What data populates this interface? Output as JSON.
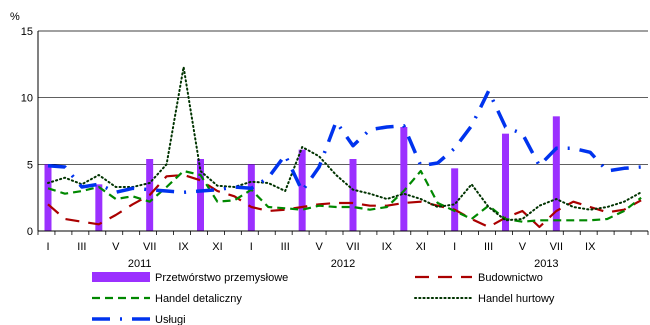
{
  "chart_data": {
    "type": "line",
    "unit_label": "%",
    "ylim": [
      0,
      15
    ],
    "y_ticks": [
      "0",
      "5",
      "10",
      "15"
    ],
    "x_tick_labels": [
      "I",
      "III",
      "V",
      "VII",
      "IX",
      "XI",
      "I",
      "III",
      "V",
      "VII",
      "IX",
      "XI",
      "I",
      "III",
      "V",
      "VII",
      "IX"
    ],
    "year_labels": [
      {
        "label": "2011",
        "month_index": 6
      },
      {
        "label": "2012",
        "month_index": 18
      },
      {
        "label": "2013",
        "month_index": 30
      }
    ],
    "grid": true,
    "legend_position": "bottom",
    "months": 36,
    "bars": {
      "name": "Przetwórstwo przemysłowe",
      "color": "#9b30ff",
      "points": [
        {
          "month": 0,
          "value": 5.0
        },
        {
          "month": 3,
          "value": 3.5
        },
        {
          "month": 6,
          "value": 5.4
        },
        {
          "month": 9,
          "value": 5.4
        },
        {
          "month": 12,
          "value": 5.0
        },
        {
          "month": 15,
          "value": 6.1
        },
        {
          "month": 18,
          "value": 5.4
        },
        {
          "month": 21,
          "value": 7.8
        },
        {
          "month": 24,
          "value": 4.7
        },
        {
          "month": 27,
          "value": 7.3
        },
        {
          "month": 30,
          "value": 8.6
        }
      ]
    },
    "series": [
      {
        "name": "Budownictwo",
        "color": "#aa0000",
        "style": "longdash",
        "values": [
          2.0,
          0.9,
          0.7,
          0.5,
          1.2,
          2.0,
          2.7,
          4.1,
          4.2,
          3.8,
          3.0,
          2.6,
          1.8,
          1.5,
          1.6,
          1.8,
          2.0,
          2.1,
          2.1,
          1.9,
          1.9,
          2.1,
          2.2,
          1.9,
          1.6,
          0.9,
          0.3,
          1.0,
          1.5,
          0.3,
          1.5,
          2.2,
          1.8,
          1.4,
          1.6,
          2.3
        ]
      },
      {
        "name": "Handel detaliczny",
        "color": "#008800",
        "style": "dash",
        "values": [
          3.2,
          2.8,
          3.0,
          3.3,
          2.4,
          2.6,
          2.2,
          3.3,
          4.5,
          4.2,
          2.2,
          2.3,
          3.1,
          1.8,
          1.7,
          1.6,
          1.9,
          1.8,
          1.8,
          1.6,
          1.8,
          3.0,
          4.5,
          2.1,
          1.5,
          0.9,
          1.9,
          0.9,
          0.7,
          0.8,
          0.8,
          0.8,
          0.8,
          0.9,
          1.5,
          2.5
        ]
      },
      {
        "name": "Handel hurtowy",
        "color": "#003300",
        "style": "dot",
        "values": [
          3.6,
          4.0,
          3.5,
          4.2,
          3.3,
          3.3,
          3.6,
          5.0,
          12.3,
          4.5,
          3.4,
          3.3,
          3.7,
          3.6,
          3.0,
          6.3,
          5.6,
          4.2,
          3.1,
          2.8,
          2.4,
          2.8,
          2.4,
          1.8,
          2.0,
          3.5,
          1.8,
          0.8,
          0.9,
          1.9,
          2.4,
          1.8,
          1.6,
          1.8,
          2.2,
          2.9
        ]
      },
      {
        "name": "Usługi",
        "color": "#0033ee",
        "style": "dashdot",
        "values": [
          4.9,
          4.8,
          3.3,
          3.5,
          2.9,
          3.2,
          3.1,
          3.0,
          2.9,
          3.0,
          3.1,
          3.3,
          3.2,
          4.0,
          5.7,
          3.0,
          4.8,
          8.2,
          6.4,
          7.6,
          7.8,
          7.9,
          4.9,
          5.1,
          6.2,
          7.9,
          10.5,
          7.8,
          7.3,
          4.9,
          6.2,
          6.2,
          5.9,
          4.5,
          4.7,
          4.8
        ]
      }
    ]
  }
}
